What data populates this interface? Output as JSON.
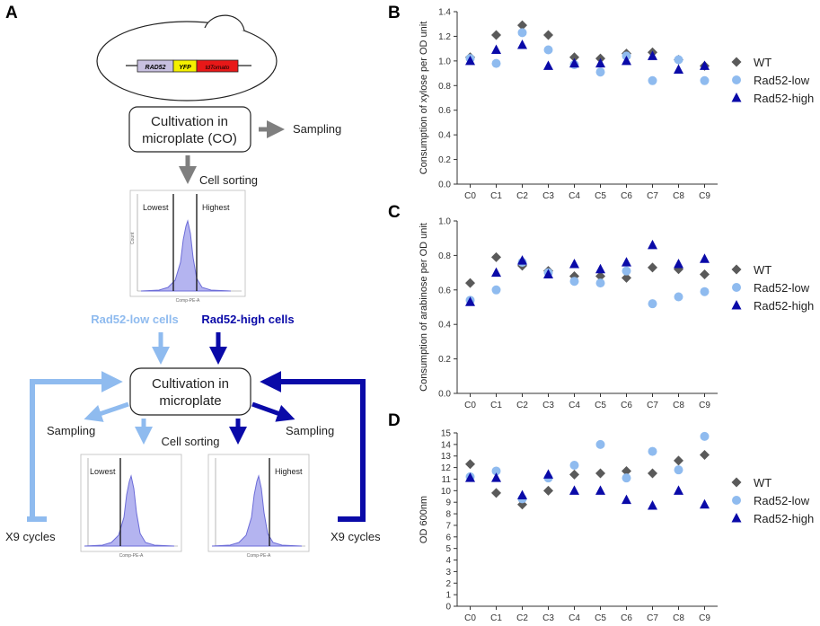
{
  "panels": {
    "a": "A",
    "b": "B",
    "c": "C",
    "d": "D"
  },
  "schematic": {
    "gene_rad52": "RAD52",
    "gene_yfp": "YFP",
    "gene_tdtomato": "tdTomato",
    "box1_line1": "Cultivation in",
    "box1_line2": "microplate (CO)",
    "sampling_top": "Sampling",
    "cell_sorting_top": "Cell sorting",
    "hist_top_lowest": "Lowest",
    "hist_top_highest": "Highest",
    "hist_axis_x": "Comp-PE-A",
    "hist_axis_y": "Count",
    "low_cells": "Rad52-low cells",
    "high_cells": "Rad52-high cells",
    "box2_line1": "Cultivation in",
    "box2_line2": "microplate",
    "sampling_left": "Sampling",
    "sampling_right": "Sampling",
    "cell_sorting_bottom": "Cell sorting",
    "hist_left_lowest": "Lowest",
    "hist_right_highest": "Highest",
    "cycles_left": "X9 cycles",
    "cycles_right": "X9 cycles"
  },
  "colors": {
    "wt": "#5a5a5a",
    "low": "#8fbbef",
    "high": "#0a0aa8",
    "gray_arrow": "#7f7f7f",
    "rad52_box": "#c8c0e0",
    "yfp_box": "#f5f000",
    "tdtomato_box": "#e81818",
    "hist_fill": "#b4b4f0"
  },
  "chart_data": [
    {
      "panel": "B",
      "type": "scatter",
      "categories": [
        "C0",
        "C1",
        "C2",
        "C3",
        "C4",
        "C5",
        "C6",
        "C7",
        "C8",
        "C9"
      ],
      "ylabel": "Consumption of xylose per OD unit",
      "ylim": [
        0,
        1.4
      ],
      "yticks": [
        "0.0",
        "0.2",
        "0.4",
        "0.6",
        "0.8",
        "1.0",
        "1.2",
        "1.4"
      ],
      "ytick_values": [
        0,
        0.2,
        0.4,
        0.6,
        0.8,
        1.0,
        1.2,
        1.4
      ],
      "series": [
        {
          "name": "WT",
          "marker": "diamond",
          "values": [
            1.03,
            1.21,
            1.29,
            1.21,
            1.03,
            1.02,
            1.06,
            1.07,
            1.01,
            0.96
          ]
        },
        {
          "name": "Rad52-low",
          "marker": "circle",
          "values": [
            1.02,
            0.98,
            1.23,
            1.09,
            0.97,
            0.91,
            1.04,
            0.84,
            1.01,
            0.84
          ]
        },
        {
          "name": "Rad52-high",
          "marker": "triangle",
          "values": [
            1.0,
            1.09,
            1.13,
            0.96,
            0.98,
            0.98,
            1.0,
            1.04,
            0.93,
            0.96
          ]
        }
      ]
    },
    {
      "panel": "C",
      "type": "scatter",
      "categories": [
        "C0",
        "C1",
        "C2",
        "C3",
        "C4",
        "C5",
        "C6",
        "C7",
        "C8",
        "C9"
      ],
      "ylabel": "Consumption of arabinose per OD unit",
      "ylim": [
        0,
        1.0
      ],
      "yticks": [
        "0.0",
        "0.2",
        "0.4",
        "0.6",
        "0.8",
        "1.0"
      ],
      "ytick_values": [
        0,
        0.2,
        0.4,
        0.6,
        0.8,
        1.0
      ],
      "series": [
        {
          "name": "WT",
          "marker": "diamond",
          "values": [
            0.64,
            0.79,
            0.74,
            0.71,
            0.68,
            0.68,
            0.67,
            0.73,
            0.72,
            0.69
          ]
        },
        {
          "name": "Rad52-low",
          "marker": "circle",
          "values": [
            0.54,
            0.6,
            0.76,
            0.7,
            0.65,
            0.64,
            0.71,
            0.52,
            0.56,
            0.59
          ]
        },
        {
          "name": "Rad52-high",
          "marker": "triangle",
          "values": [
            0.53,
            0.7,
            0.77,
            0.69,
            0.75,
            0.72,
            0.76,
            0.86,
            0.75,
            0.78
          ]
        }
      ]
    },
    {
      "panel": "D",
      "type": "scatter",
      "categories": [
        "C0",
        "C1",
        "C2",
        "C3",
        "C4",
        "C5",
        "C6",
        "C7",
        "C8",
        "C9"
      ],
      "ylabel": "OD 600nm",
      "ylim": [
        0,
        15
      ],
      "yticks": [
        "0",
        "1",
        "2",
        "3",
        "4",
        "5",
        "6",
        "7",
        "8",
        "9",
        "10",
        "11",
        "12",
        "13",
        "14",
        "15"
      ],
      "ytick_values": [
        0,
        1,
        2,
        3,
        4,
        5,
        6,
        7,
        8,
        9,
        10,
        11,
        12,
        13,
        14,
        15
      ],
      "series": [
        {
          "name": "WT",
          "marker": "diamond",
          "values": [
            12.3,
            9.8,
            8.8,
            10.0,
            11.4,
            11.5,
            11.7,
            11.5,
            12.6,
            13.1
          ]
        },
        {
          "name": "Rad52-low",
          "marker": "circle",
          "values": [
            11.2,
            11.7,
            9.3,
            11.1,
            12.2,
            14.0,
            11.1,
            13.4,
            11.8,
            14.7
          ]
        },
        {
          "name": "Rad52-high",
          "marker": "triangle",
          "values": [
            11.1,
            11.1,
            9.6,
            11.4,
            10.0,
            10.0,
            9.2,
            8.7,
            10.0,
            8.8
          ]
        }
      ]
    }
  ]
}
